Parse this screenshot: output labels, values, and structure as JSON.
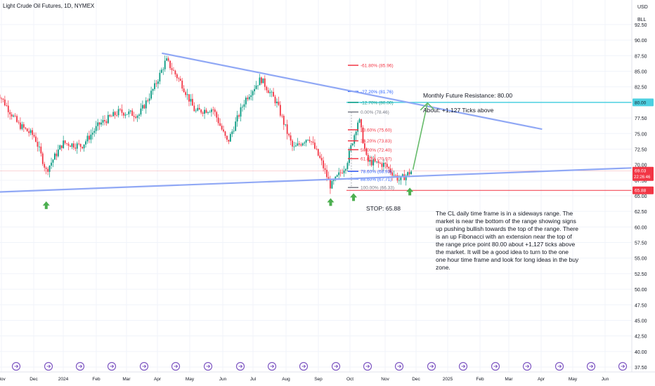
{
  "header": {
    "title": "Light Crude Oil Futures, 1D, NYMEX"
  },
  "price_axis": {
    "currency": "USD",
    "unit": "BLL"
  },
  "annotations": {
    "resistance_label": "Monthly Future Resistance: 80.00",
    "ticks_label": "About: +1,127 Ticks above",
    "stop_label": "STOP: 65.88",
    "note": "The CL daily time frame is in a sideways range. The market is near the bottom of the range showing signs up pushing bullish towards the top of the range. There is an up Fibonacci with an extension near the top of the range price point 80.00 about +1,127 ticks above the market. It will be a good idea to turn to the one one hour time frame and look for long ideas in the buy zone."
  },
  "fib_levels": [
    {
      "label": "-61.80% (85.96)",
      "price": 85.96,
      "color": "#f23645"
    },
    {
      "label": "-27.20% (81.76)",
      "price": 81.76,
      "color": "#2962ff"
    },
    {
      "label": "-12.70% (80.00)",
      "price": 80.0,
      "color": "#089981"
    },
    {
      "label": "0.00% (78.46)",
      "price": 78.46,
      "color": "#787b86"
    },
    {
      "label": "23.60% (75.60)",
      "price": 75.6,
      "color": "#f23645"
    },
    {
      "label": "38.20% (73.83)",
      "price": 73.83,
      "color": "#f23645"
    },
    {
      "label": "50.00% (72.40)",
      "price": 72.4,
      "color": "#f23645"
    },
    {
      "label": "61.80% (70.97)",
      "price": 70.97,
      "color": "#f23645"
    },
    {
      "label": "78.60% (68.93)",
      "price": 68.93,
      "color": "#2962ff"
    },
    {
      "label": "88.60% (67.71)",
      "price": 67.71,
      "color": "#2962ff"
    },
    {
      "label": "100.00% (66.33)",
      "price": 66.33,
      "color": "#787b86"
    }
  ],
  "badges": [
    {
      "text": "80.00",
      "price": 80.0,
      "bg": "#4dd0e1",
      "fg": "#131722"
    },
    {
      "text": "69.03",
      "sub": "22:26:46",
      "price": 69.03,
      "bg": "#f23645",
      "fg": "#ffffff"
    },
    {
      "text": "65.88",
      "price": 65.88,
      "bg": "#f23645",
      "fg": "#ffffff"
    }
  ],
  "colors": {
    "up": "#089981",
    "down": "#f23645",
    "trendline": "#90a8f5",
    "resistance": "#4dd0e1",
    "stop": "#f23645",
    "arrow": "#4caf50"
  },
  "chart_data": {
    "type": "candlestick",
    "title": "Light Crude Oil Futures, 1D, NYMEX",
    "y_ticks": [
      37.5,
      40.0,
      42.5,
      45.0,
      47.5,
      50.0,
      52.5,
      55.0,
      57.5,
      60.0,
      62.5,
      65.0,
      67.5,
      70.0,
      72.5,
      75.0,
      77.5,
      80.0,
      82.5,
      85.0,
      87.5,
      90.0,
      92.5
    ],
    "ylim": [
      36.5,
      94.5
    ],
    "x_ticks": [
      "Nov",
      "Dec",
      "2024",
      "Feb",
      "Mar",
      "Apr",
      "May",
      "Jun",
      "Jul",
      "Aug",
      "Sep",
      "Oct",
      "Nov",
      "Dec",
      "2025",
      "Feb",
      "Mar",
      "Apr",
      "May",
      "Jun"
    ],
    "last_price": 69.03,
    "levels": {
      "resistance": 80.0,
      "stop": 65.88
    },
    "trendlines": [
      {
        "name": "range-top",
        "from": [
          "2024-04-01",
          87.9
        ],
        "to": [
          "2025-04-01",
          75.7
        ]
      },
      {
        "name": "range-bottom",
        "from": [
          "2023-10-25",
          65.6
        ],
        "to": [
          "2025-06-30",
          69.5
        ]
      }
    ],
    "price_path": [
      [
        "2023-10-25",
        82.0
      ],
      [
        "2023-11-15",
        76.5
      ],
      [
        "2023-12-01",
        74.5
      ],
      [
        "2023-12-12",
        69.0
      ],
      [
        "2023-12-28",
        73.5
      ],
      [
        "2024-01-15",
        73.0
      ],
      [
        "2024-02-01",
        76.5
      ],
      [
        "2024-02-20",
        78.5
      ],
      [
        "2024-03-10",
        78.0
      ],
      [
        "2024-03-25",
        82.5
      ],
      [
        "2024-04-05",
        86.8
      ],
      [
        "2024-04-20",
        83.0
      ],
      [
        "2024-05-03",
        78.5
      ],
      [
        "2024-05-20",
        79.0
      ],
      [
        "2024-06-03",
        73.5
      ],
      [
        "2024-06-20",
        80.5
      ],
      [
        "2024-07-05",
        83.8
      ],
      [
        "2024-07-20",
        80.0
      ],
      [
        "2024-08-05",
        72.5
      ],
      [
        "2024-08-20",
        74.5
      ],
      [
        "2024-09-01",
        70.5
      ],
      [
        "2024-09-10",
        66.5
      ],
      [
        "2024-09-25",
        70.0
      ],
      [
        "2024-10-07",
        77.5
      ],
      [
        "2024-10-15",
        70.5
      ],
      [
        "2024-11-01",
        70.0
      ],
      [
        "2024-11-15",
        67.5
      ],
      [
        "2024-11-27",
        69.0
      ]
    ],
    "markers": [
      {
        "type": "buy-arrow",
        "date": "2023-12-12",
        "price": 64.0
      },
      {
        "type": "buy-arrow",
        "date": "2024-09-10",
        "price": 64.5
      },
      {
        "type": "buy-arrow",
        "date": "2024-10-02",
        "price": 65.3
      },
      {
        "type": "buy-arrow",
        "date": "2024-11-25",
        "price": 66.2
      }
    ],
    "projection": {
      "from": [
        "2024-11-28",
        69.2
      ],
      "to": [
        "2024-12-12",
        79.9
      ]
    }
  }
}
